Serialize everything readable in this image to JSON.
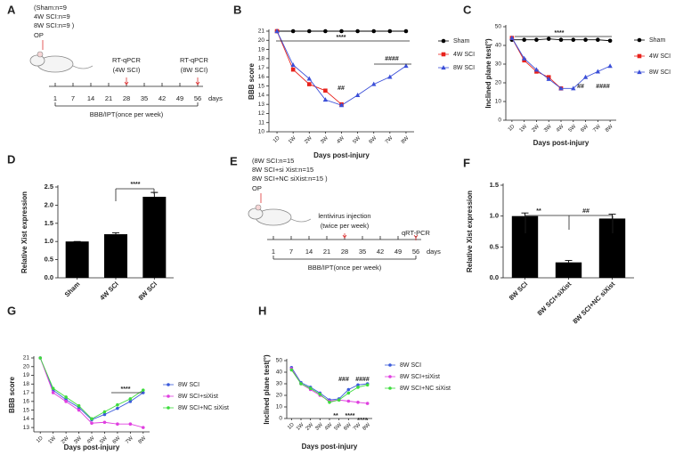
{
  "timelines": [
    {
      "panel": "A",
      "groups": [
        "(Sham:n=9",
        "4W SCI:n=9",
        "8W SCI:n=9 )"
      ],
      "op": "OP",
      "events": [
        [
          "RT-qPCR",
          "(4W SCI)"
        ],
        [
          "RT-qPCR",
          "(8W SCI)"
        ]
      ],
      "days": [
        1,
        7,
        14,
        21,
        28,
        35,
        42,
        49,
        56
      ],
      "unit": "days",
      "period": "BBB/IPT(once per week)"
    },
    {
      "panel": "E",
      "groups": [
        "(8W SCI:n=15",
        "8W SCI+si Xist:n=15",
        "8W SCI+NC siXist:n=15 )"
      ],
      "op": "OP",
      "events": [
        [
          "lentivirus  injection",
          "(twice per week)"
        ],
        [
          "qRT-PCR"
        ]
      ],
      "days": [
        1,
        7,
        14,
        21,
        28,
        35,
        42,
        49,
        56
      ],
      "unit": "days",
      "period": "BBB/IPT(once per week)"
    }
  ],
  "chart_data": [
    {
      "panel": "B",
      "type": "line",
      "ylabel": "BBB score",
      "xlabel": "Days post-injury",
      "categories": [
        "1D",
        "1W",
        "2W",
        "3W",
        "4W",
        "5W",
        "6W",
        "7W",
        "8W"
      ],
      "ylim": [
        10,
        21
      ],
      "yticks": [
        10,
        11,
        12,
        13,
        14,
        15,
        16,
        17,
        18,
        19,
        20,
        21
      ],
      "series": [
        {
          "name": "Sham",
          "color": "#000000",
          "marker": "circle",
          "values": [
            21,
            21,
            21,
            21,
            21,
            21,
            21,
            21,
            21
          ]
        },
        {
          "name": "4W SCI",
          "color": "#e8221c",
          "marker": "square",
          "values": [
            21,
            16.8,
            15.2,
            14.5,
            13.0,
            null,
            null,
            null,
            null
          ]
        },
        {
          "name": "8W SCI",
          "color": "#3b4fd8",
          "marker": "triangle",
          "values": [
            21,
            17.3,
            15.8,
            13.5,
            12.9,
            14.0,
            15.2,
            16.0,
            17.2
          ]
        }
      ],
      "annotations": [
        "****",
        "##",
        "####"
      ]
    },
    {
      "panel": "C",
      "type": "line",
      "ylabel": "Inclined plane test(°)",
      "xlabel": "Days post-injury",
      "categories": [
        "1D",
        "1W",
        "2W",
        "3W",
        "4W",
        "5W",
        "6W",
        "7W",
        "8W"
      ],
      "ylim": [
        0,
        50
      ],
      "yticks": [
        0,
        10,
        20,
        30,
        40,
        50
      ],
      "series": [
        {
          "name": "Sham",
          "color": "#000000",
          "marker": "circle",
          "values": [
            43,
            43,
            43,
            43.5,
            43,
            43,
            43,
            43,
            42.5
          ]
        },
        {
          "name": "4W SCI",
          "color": "#e8221c",
          "marker": "square",
          "values": [
            44,
            32,
            26,
            23,
            17,
            null,
            null,
            null,
            null
          ]
        },
        {
          "name": "8W SCI",
          "color": "#3b4fd8",
          "marker": "triangle",
          "values": [
            44,
            33,
            27,
            22,
            17,
            17,
            23,
            26,
            29
          ]
        }
      ],
      "annotations": [
        "****",
        "##",
        "####"
      ]
    },
    {
      "panel": "D",
      "type": "bar",
      "ylabel": "Relative Xist expression",
      "color": "#000000",
      "categories": [
        "Sham",
        "4W SCI",
        "8W SCI"
      ],
      "values": [
        1.0,
        1.2,
        2.23
      ],
      "errors": [
        0,
        0.04,
        0.12
      ],
      "ylim": [
        0,
        2.5
      ],
      "yticks": [
        {
          "value": 0,
          "label": "0.0"
        },
        0.5,
        {
          "value": 1,
          "label": "1.0"
        },
        1.5,
        {
          "value": 2,
          "label": "2.0"
        },
        2.5
      ],
      "annotations": [
        "****"
      ]
    },
    {
      "panel": "F",
      "type": "bar",
      "ylabel": "Relative Xist expression",
      "color": "#000000",
      "categories": [
        "8W SCI",
        "8W SCI+siXist",
        "8W SCI+NC siXist"
      ],
      "values": [
        1.0,
        0.25,
        0.96
      ],
      "errors": [
        0.05,
        0.03,
        0.07
      ],
      "ylim": [
        0,
        1.5
      ],
      "yticks": [
        {
          "value": 0,
          "label": "0.0"
        },
        0.5,
        {
          "value": 1,
          "label": "1.0"
        },
        1.5
      ],
      "annotations": [
        "**",
        "##"
      ]
    },
    {
      "panel": "G",
      "type": "line",
      "ylabel": "BBB score",
      "xlabel": "Days post-injury",
      "categories": [
        "1D",
        "1W",
        "2W",
        "3W",
        "4W",
        "5W",
        "6W",
        "7W",
        "8W"
      ],
      "ylim": [
        12.5,
        21
      ],
      "yticks": [
        13,
        14,
        15,
        16,
        17,
        18,
        19,
        20,
        21
      ],
      "series": [
        {
          "name": "8W SCI",
          "color": "#3b5bdb",
          "marker": "circle",
          "values": [
            21,
            17.3,
            16.2,
            15.3,
            13.9,
            14.5,
            15.2,
            16.0,
            17.0
          ]
        },
        {
          "name": "8W SCI+siXist",
          "color": "#e040e0",
          "marker": "circle",
          "values": [
            21,
            17.0,
            16.0,
            15.0,
            13.5,
            13.6,
            13.4,
            13.4,
            13.0
          ]
        },
        {
          "name": "8W SCI+NC siXist",
          "color": "#3ddc3d",
          "marker": "circle",
          "values": [
            21,
            17.5,
            16.5,
            15.5,
            14.0,
            14.8,
            15.6,
            16.3,
            17.3
          ]
        }
      ],
      "annotations": [
        "****"
      ]
    },
    {
      "panel": "H",
      "type": "line",
      "ylabel": "Inclined plane test(°)",
      "xlabel": "Days post-injury",
      "categories": [
        "1D",
        "1W",
        "2W",
        "3W",
        "4W",
        "5W",
        "6W",
        "7W",
        "8W"
      ],
      "ylim": [
        0,
        50
      ],
      "yticks": [
        0,
        10,
        20,
        30,
        40,
        50
      ],
      "series": [
        {
          "name": "8W SCI",
          "color": "#3b5bdb",
          "marker": "circle",
          "values": [
            44,
            31,
            27,
            22,
            16,
            17,
            25,
            29,
            30
          ]
        },
        {
          "name": "8W SCI+siXist",
          "color": "#e040e0",
          "marker": "circle",
          "values": [
            43,
            30,
            25,
            20,
            15,
            16,
            15,
            14,
            13
          ]
        },
        {
          "name": "8W SCI+NC siXist",
          "color": "#3ddc3d",
          "marker": "circle",
          "values": [
            42,
            30,
            26,
            21,
            14,
            16,
            22,
            27,
            29
          ]
        }
      ],
      "annotations": [
        "###",
        "####",
        "**",
        "****",
        "****"
      ]
    }
  ]
}
